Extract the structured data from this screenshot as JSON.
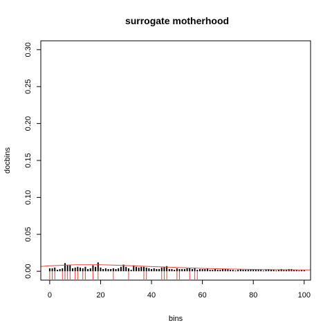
{
  "chart_data": {
    "type": "bar",
    "title": "surrogate motherhood",
    "xlabel": "bins",
    "ylabel": "docbins",
    "xlim": [
      -3.5,
      102.5
    ],
    "ylim": [
      -0.012,
      0.312
    ],
    "xticks": [
      0,
      20,
      40,
      60,
      80,
      100
    ],
    "xtick_labels": [
      "0",
      "20",
      "40",
      "60",
      "80",
      "100"
    ],
    "yticks": [
      0.0,
      0.05,
      0.1,
      0.15,
      0.2,
      0.25,
      0.3
    ],
    "ytick_labels": [
      "0.00",
      "0.05",
      "0.10",
      "0.15",
      "0.20",
      "0.25",
      "0.30"
    ],
    "grid": false,
    "colors": {
      "bars": "#000000",
      "smooth_line": "#e8413b",
      "rug": "#e8413b"
    },
    "series": [
      {
        "type": "bar",
        "x": [
          0,
          1,
          2,
          3,
          4,
          5,
          6,
          7,
          8,
          9,
          10,
          11,
          12,
          13,
          14,
          15,
          16,
          17,
          18,
          19,
          20,
          21,
          22,
          23,
          24,
          25,
          26,
          27,
          28,
          29,
          30,
          31,
          32,
          33,
          34,
          35,
          36,
          37,
          38,
          39,
          40,
          41,
          42,
          43,
          44,
          45,
          46,
          47,
          48,
          49,
          50,
          51,
          52,
          53,
          54,
          55,
          56,
          57,
          58,
          59,
          60,
          61,
          62,
          63,
          64,
          65,
          66,
          67,
          68,
          69,
          70,
          71,
          72,
          73,
          74,
          75,
          76,
          77,
          78,
          79,
          80,
          81,
          82,
          83,
          84,
          85,
          86,
          87,
          88,
          89,
          90,
          91,
          92,
          93,
          94,
          95,
          96,
          97,
          98,
          99,
          100
        ],
        "values": [
          0.004,
          0.004,
          0.005,
          0.002,
          0.003,
          0.004,
          0.011,
          0.008,
          0.008,
          0.004,
          0.005,
          0.006,
          0.005,
          0.004,
          0.006,
          0.003,
          0.004,
          0.008,
          0.006,
          0.012,
          0.005,
          0.003,
          0.004,
          0.003,
          0.003,
          0.004,
          0.003,
          0.004,
          0.006,
          0.009,
          0.006,
          0.004,
          0.002,
          0.008,
          0.006,
          0.005,
          0.006,
          0.006,
          0.005,
          0.004,
          0.003,
          0.004,
          0.003,
          0.003,
          0.005,
          0.006,
          0.007,
          0.003,
          0.003,
          0.002,
          0.004,
          0.003,
          0.003,
          0.003,
          0.004,
          0.004,
          0.003,
          0.004,
          0.002,
          0.003,
          0.003,
          0.003,
          0.004,
          0.002,
          0.002,
          0.003,
          0.002,
          0.002,
          0.003,
          0.003,
          0.003,
          0.002,
          0.002,
          0.001,
          0.002,
          0.003,
          0.002,
          0.002,
          0.002,
          0.003,
          0.003,
          0.002,
          0.002,
          0.002,
          0.001,
          0.002,
          0.003,
          0.002,
          0.002,
          0.001,
          0.002,
          0.003,
          0.002,
          0.002,
          0.003,
          0.003,
          0.002,
          0.002,
          0.001,
          0.002,
          0.002
        ]
      },
      {
        "type": "line",
        "x": [
          -3.5,
          0,
          10,
          20,
          30,
          40,
          50,
          60,
          70,
          80,
          90,
          100,
          102.5
        ],
        "values": [
          0.0065,
          0.0075,
          0.0088,
          0.0088,
          0.0078,
          0.0064,
          0.0051,
          0.0039,
          0.0031,
          0.0025,
          0.0021,
          0.0019,
          0.0019
        ]
      },
      {
        "type": "rug",
        "x": [
          0,
          1,
          2,
          5,
          6,
          7,
          8,
          10,
          11,
          13,
          14,
          17,
          19,
          25,
          31,
          37,
          38,
          44,
          45,
          46,
          50,
          51,
          55,
          57,
          58
        ]
      }
    ]
  }
}
